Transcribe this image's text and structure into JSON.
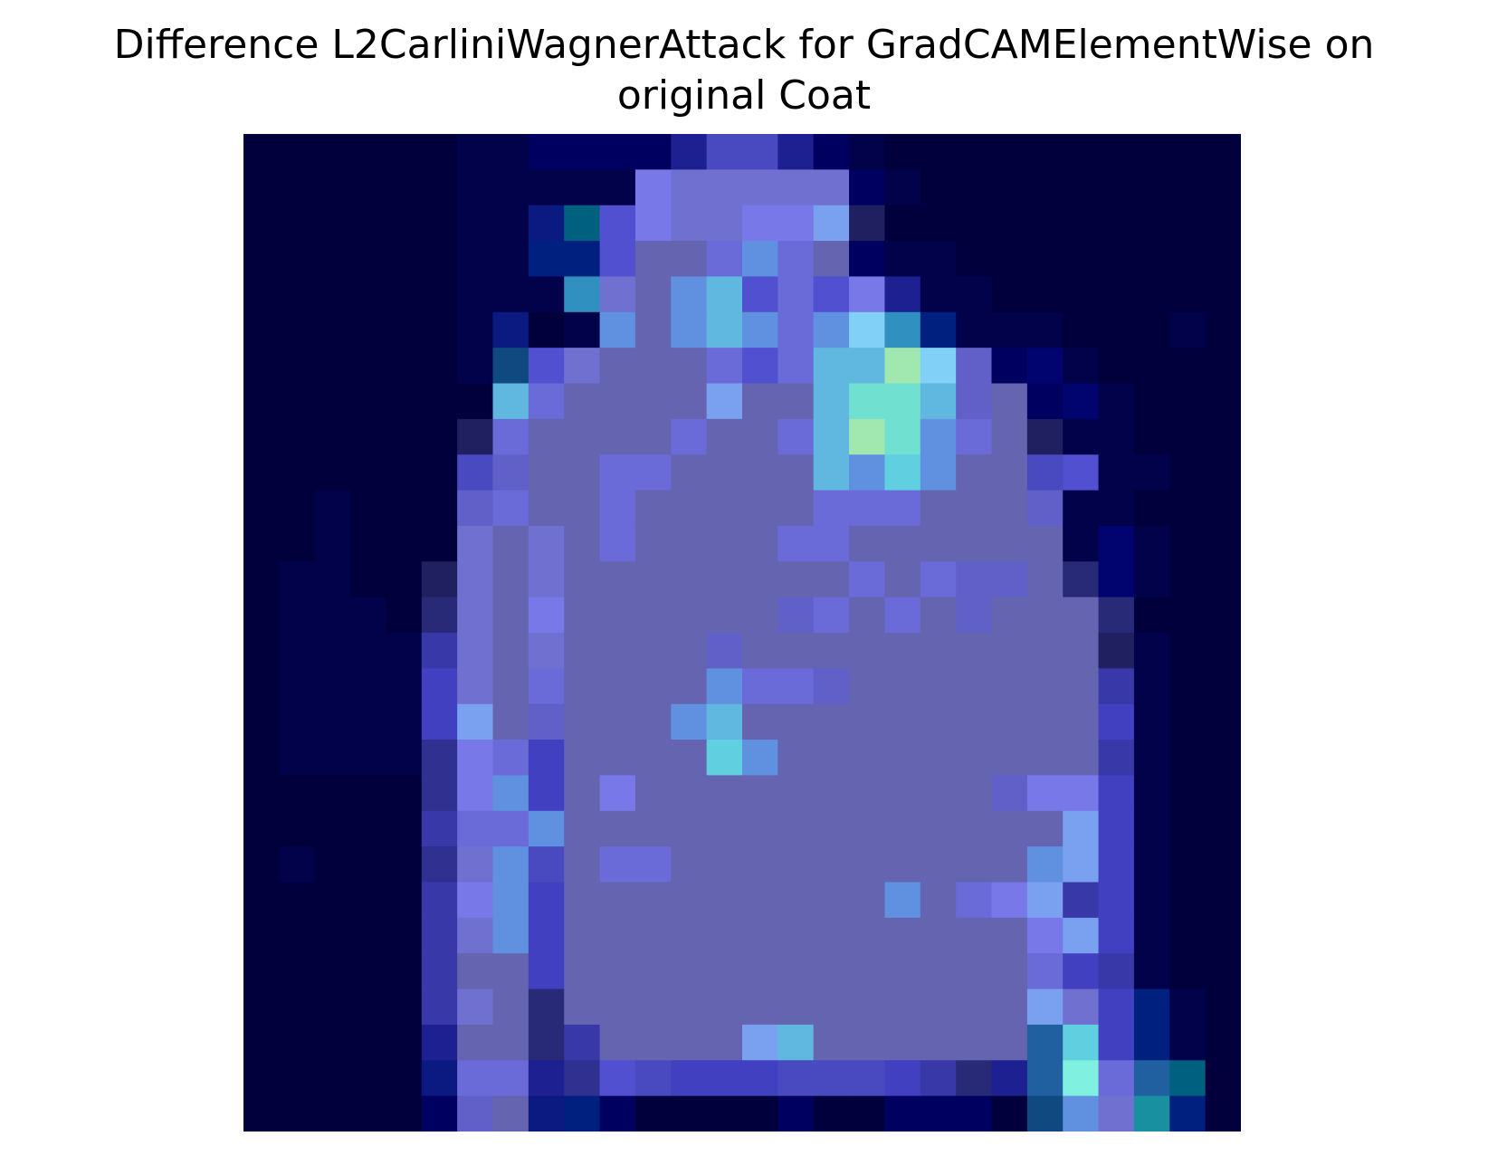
{
  "chart_data": {
    "type": "heatmap",
    "title_lines": [
      "Difference L2CarliniWagnerAttack for GradCAMElementWise on",
      "original Coat"
    ],
    "rows": 28,
    "cols": 28,
    "axes_visible": false,
    "grid": false,
    "colorbar": false,
    "description_colors": {
      "background": "#00003c",
      "body": "#6060c0",
      "highlight_cyan": "#60d0e0",
      "highlight_green": "#a0e8b0"
    },
    "palette": {
      "a": "#01003c",
      "b": "#02024a",
      "c": "#000060",
      "d": "#01036e",
      "e": "#0a1a80",
      "f": "#1c2090",
      "g": "#282a78",
      "h": "#303090",
      "i": "#3838a8",
      "j": "#4040c0",
      "k": "#4a4ac0",
      "l": "#5050d0",
      "m": "#5a5ab8",
      "n": "#6060c8",
      "o": "#6464b0",
      "p": "#6a6ad8",
      "q": "#7070d0",
      "r": "#7878e8",
      "s": "#7aa0f0",
      "t": "#6090e0",
      "u": "#60b8e0",
      "v": "#60d0e0",
      "w": "#70e0d0",
      "x": "#a0e8b0",
      "y": "#80d0f8",
      "z": "#2060a0",
      "A": "#006080",
      "B": "#3090c0",
      "C": "#104880",
      "D": "#1890a0",
      "E": "#002080",
      "F": "#202060",
      "G": "#80f0e0",
      "H": "#4060d0"
    },
    "cells": [
      "aaaaaabbccccfkkfcbaaaaaaaaaa",
      "aaaaaabbbbbrqqqqqcbaaaaaaaaa",
      "aaaaaabbeAlrqqrrsFaaaaaaaaaa",
      "aaaaaabbEElooptpocbbaaaaaaaa",
      "aaaaaabbbBqotulplrfbbaaaaaaa",
      "aaaaaabeabtotutptyBEbbbaaaba",
      "aaaaaabClqoooplpuuxyncdbaaaa",
      "aaaaaaaupoooosoouwwunocdbaaa",
      "aaaaaaFpoooopoopuxwtpoFbbaaa",
      "aaaaaaknooppooooutvtooklbbaa",
      "aabaaanpoopooooopppooonbbaaa",
      "aabaaaqoqopooooppoooooobdbaa",
      "abbaaFqoqoooooooopopnnogdbaa",
      "abbbagqoroooooonpoponooogaaa",
      "abbbbiqoqoooonooooooooooFbaa",
      "abbbbjqopooootppnoooooooibaa",
      "abbbbjsonoootuoooooooooojbaa",
      "abbbbhrpjoooovtoooooooooibaa",
      "aaaaahrtjoroooooooooonrrjbaa",
      "aaaaaipptoooooooooooooosjbaa",
      "abaaahqtkoppooooooooootsjbaa",
      "aaaaairtjoooooooootoprsijbaa",
      "aaaaaiqtjooooooooooooorsjbaa",
      "aaaaaioojooooooooooooopjibaa",
      "aaaaaiqogooooooooooooosqjEba",
      "aaaaafoogioooosuoooooozvjEba",
      "aaaaaeppfhlkjjjkkkjigfzGpzAa",
      "aaaaacnoeEcaaaacaacccaCtqDEa"
    ]
  }
}
